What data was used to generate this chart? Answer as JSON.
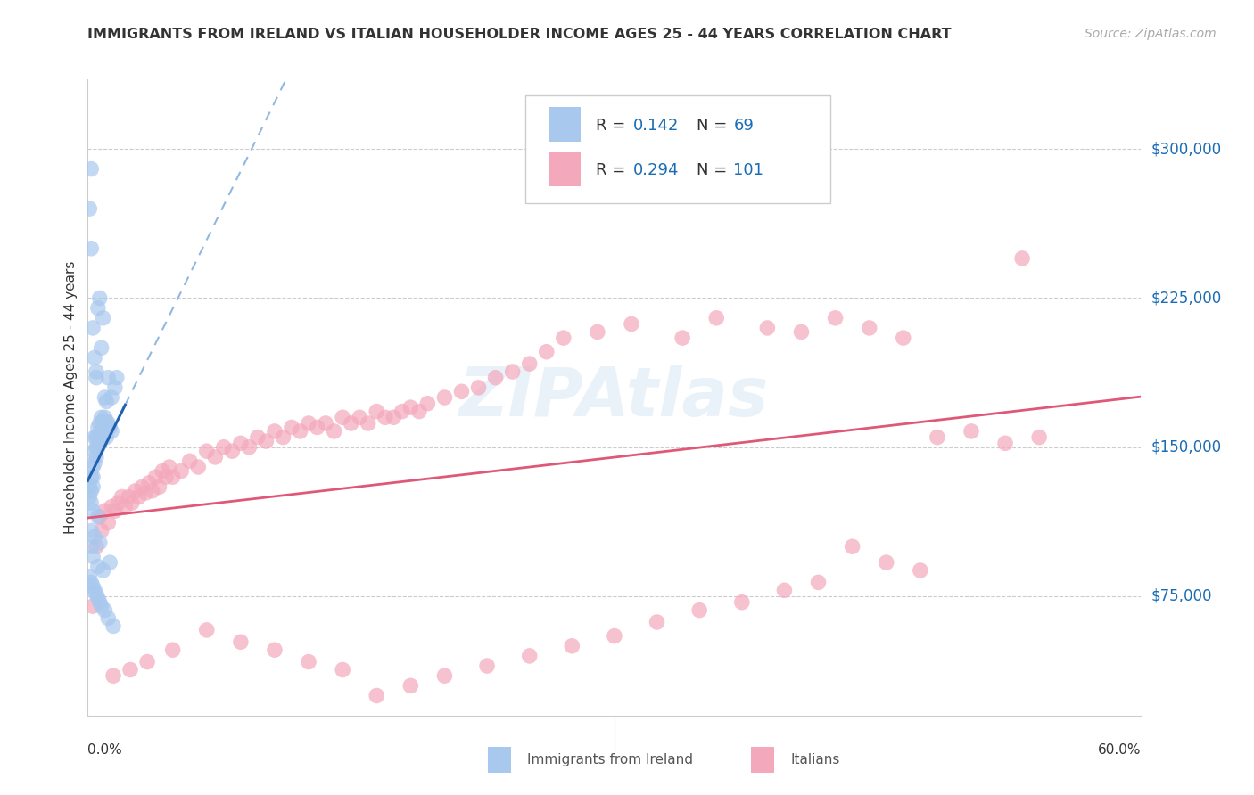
{
  "title": "IMMIGRANTS FROM IRELAND VS ITALIAN HOUSEHOLDER INCOME AGES 25 - 44 YEARS CORRELATION CHART",
  "source": "Source: ZipAtlas.com",
  "ylabel": "Householder Income Ages 25 - 44 years",
  "ytick_values": [
    75000,
    150000,
    225000,
    300000
  ],
  "ytick_labels": [
    "$75,000",
    "$150,000",
    "$225,000",
    "$300,000"
  ],
  "ymin": 15000,
  "ymax": 335000,
  "xmin": 0.0,
  "xmax": 0.62,
  "ireland_R": 0.142,
  "ireland_N": 69,
  "italian_R": 0.294,
  "italian_N": 101,
  "ireland_color": "#a8c8ee",
  "italian_color": "#f4a8bc",
  "ireland_line_color": "#2060b0",
  "italian_line_color": "#e05878",
  "dashed_line_color": "#90b8e0",
  "watermark_text": "ZIPAtlas",
  "ireland_x": [
    0.001,
    0.001,
    0.002,
    0.002,
    0.002,
    0.003,
    0.003,
    0.003,
    0.004,
    0.004,
    0.004,
    0.005,
    0.005,
    0.005,
    0.006,
    0.006,
    0.006,
    0.007,
    0.007,
    0.007,
    0.008,
    0.008,
    0.009,
    0.009,
    0.01,
    0.01,
    0.011,
    0.011,
    0.012,
    0.013,
    0.014,
    0.001,
    0.002,
    0.002,
    0.003,
    0.004,
    0.005,
    0.005,
    0.006,
    0.007,
    0.008,
    0.009,
    0.01,
    0.011,
    0.012,
    0.014,
    0.016,
    0.001,
    0.002,
    0.003,
    0.004,
    0.005,
    0.006,
    0.007,
    0.008,
    0.01,
    0.012,
    0.015,
    0.002,
    0.003,
    0.006,
    0.009,
    0.013,
    0.002,
    0.004,
    0.007,
    0.017,
    0.003,
    0.006
  ],
  "ireland_y": [
    130000,
    125000,
    135000,
    128000,
    122000,
    140000,
    135000,
    130000,
    155000,
    148000,
    142000,
    155000,
    150000,
    145000,
    160000,
    155000,
    150000,
    162000,
    157000,
    152000,
    165000,
    158000,
    163000,
    155000,
    165000,
    158000,
    163000,
    155000,
    162000,
    160000,
    158000,
    270000,
    250000,
    290000,
    210000,
    195000,
    185000,
    188000,
    220000,
    225000,
    200000,
    215000,
    175000,
    173000,
    185000,
    175000,
    180000,
    85000,
    82000,
    80000,
    78000,
    76000,
    74000,
    72000,
    70000,
    68000,
    64000,
    60000,
    100000,
    95000,
    90000,
    88000,
    92000,
    108000,
    105000,
    102000,
    185000,
    118000,
    115000
  ],
  "italian_x": [
    0.003,
    0.005,
    0.007,
    0.008,
    0.01,
    0.012,
    0.014,
    0.016,
    0.018,
    0.02,
    0.022,
    0.024,
    0.026,
    0.028,
    0.03,
    0.032,
    0.034,
    0.036,
    0.038,
    0.04,
    0.042,
    0.044,
    0.046,
    0.048,
    0.05,
    0.055,
    0.06,
    0.065,
    0.07,
    0.075,
    0.08,
    0.085,
    0.09,
    0.095,
    0.1,
    0.105,
    0.11,
    0.115,
    0.12,
    0.125,
    0.13,
    0.135,
    0.14,
    0.145,
    0.15,
    0.155,
    0.16,
    0.165,
    0.17,
    0.175,
    0.18,
    0.185,
    0.19,
    0.195,
    0.2,
    0.21,
    0.22,
    0.23,
    0.24,
    0.25,
    0.26,
    0.27,
    0.28,
    0.3,
    0.32,
    0.35,
    0.37,
    0.4,
    0.42,
    0.44,
    0.46,
    0.48,
    0.5,
    0.52,
    0.54,
    0.55,
    0.56,
    0.45,
    0.47,
    0.49,
    0.43,
    0.41,
    0.385,
    0.36,
    0.335,
    0.31,
    0.285,
    0.26,
    0.235,
    0.21,
    0.19,
    0.17,
    0.15,
    0.13,
    0.11,
    0.09,
    0.07,
    0.05,
    0.035,
    0.025,
    0.015
  ],
  "italian_y": [
    70000,
    100000,
    115000,
    108000,
    118000,
    112000,
    120000,
    118000,
    122000,
    125000,
    120000,
    125000,
    122000,
    128000,
    125000,
    130000,
    127000,
    132000,
    128000,
    135000,
    130000,
    138000,
    135000,
    140000,
    135000,
    138000,
    143000,
    140000,
    148000,
    145000,
    150000,
    148000,
    152000,
    150000,
    155000,
    153000,
    158000,
    155000,
    160000,
    158000,
    162000,
    160000,
    162000,
    158000,
    165000,
    162000,
    165000,
    162000,
    168000,
    165000,
    165000,
    168000,
    170000,
    168000,
    172000,
    175000,
    178000,
    180000,
    185000,
    188000,
    192000,
    198000,
    205000,
    208000,
    212000,
    205000,
    215000,
    210000,
    208000,
    215000,
    210000,
    205000,
    155000,
    158000,
    152000,
    245000,
    155000,
    100000,
    92000,
    88000,
    82000,
    78000,
    72000,
    68000,
    62000,
    55000,
    50000,
    45000,
    40000,
    35000,
    30000,
    25000,
    38000,
    42000,
    48000,
    52000,
    58000,
    48000,
    42000,
    38000,
    35000
  ]
}
